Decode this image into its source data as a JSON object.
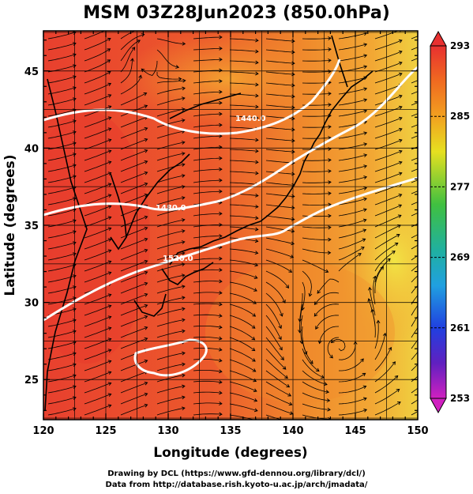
{
  "title": "MSM 03Z28Jun2023 (850.0hPa)",
  "credits": {
    "line1": "Drawing by DCL (https://www.gfd-dennou.org/library/dcl/)",
    "line2": "Data from http://database.rish.kyoto-u.ac.jp/arch/jmadata/"
  },
  "map": {
    "xlabel": "Longitude (degrees)",
    "ylabel": "Latitude  (degrees)",
    "lon_range": [
      120,
      150
    ],
    "lat_range": [
      22.4,
      47.6
    ],
    "x_ticks": [
      "120",
      "125",
      "130",
      "135",
      "140",
      "145",
      "150"
    ],
    "y_ticks": [
      "25",
      "30",
      "35",
      "40",
      "45"
    ],
    "contour_labels": [
      "1440.0",
      "1480.0",
      "1520.0"
    ],
    "fill_colors": {
      "warm": "#e8402e",
      "orange": "#f07828",
      "amber": "#f2a030",
      "yellow": "#f0e040"
    },
    "contour_color": "#ffffff",
    "streamline_color": "#000000"
  },
  "colorbar": {
    "labels": [
      "293",
      "285",
      "277",
      "269",
      "261",
      "253"
    ],
    "range": [
      253,
      293
    ]
  }
}
